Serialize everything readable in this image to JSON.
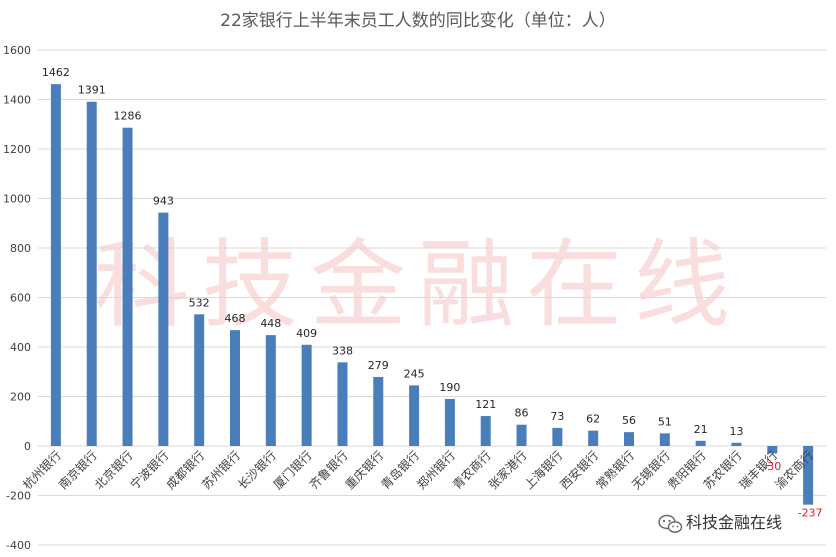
{
  "chart_data": {
    "type": "bar",
    "title": "22家银行上半年末员工人数的同比变化（单位：人）",
    "xlabel": "",
    "ylabel": "",
    "ylim": [
      -400,
      1600
    ],
    "yticks": [
      -400,
      -200,
      0,
      200,
      400,
      600,
      800,
      1000,
      1200,
      1400,
      1600
    ],
    "grid": true,
    "legend": "none",
    "bar_color": "#4a7ebb",
    "negative_label_color": "#e02020",
    "categories": [
      "杭州银行",
      "南京银行",
      "北京银行",
      "宁波银行",
      "成都银行",
      "苏州银行",
      "长沙银行",
      "厦门银行",
      "齐鲁银行",
      "重庆银行",
      "青岛银行",
      "郑州银行",
      "青农商行",
      "张家港行",
      "上海银行",
      "西安银行",
      "常熟银行",
      "无锡银行",
      "贵阳银行",
      "苏农银行",
      "瑞丰银行",
      "渝农商行"
    ],
    "values": [
      1462,
      1391,
      1286,
      943,
      532,
      468,
      448,
      409,
      338,
      279,
      245,
      190,
      121,
      86,
      73,
      62,
      56,
      51,
      21,
      13,
      -30,
      -237
    ],
    "data_labels": [
      "1462",
      "1391",
      "1286",
      "943",
      "532",
      "468",
      "448",
      "409",
      "338",
      "279",
      "245",
      "190",
      "121",
      "86",
      "73",
      "62",
      "56",
      "51",
      "21",
      "13",
      "-30",
      "-237"
    ]
  },
  "watermark": {
    "text": "科技金融在线",
    "brand": "科技金融在线",
    "brand_icon": "wechat-icon"
  }
}
